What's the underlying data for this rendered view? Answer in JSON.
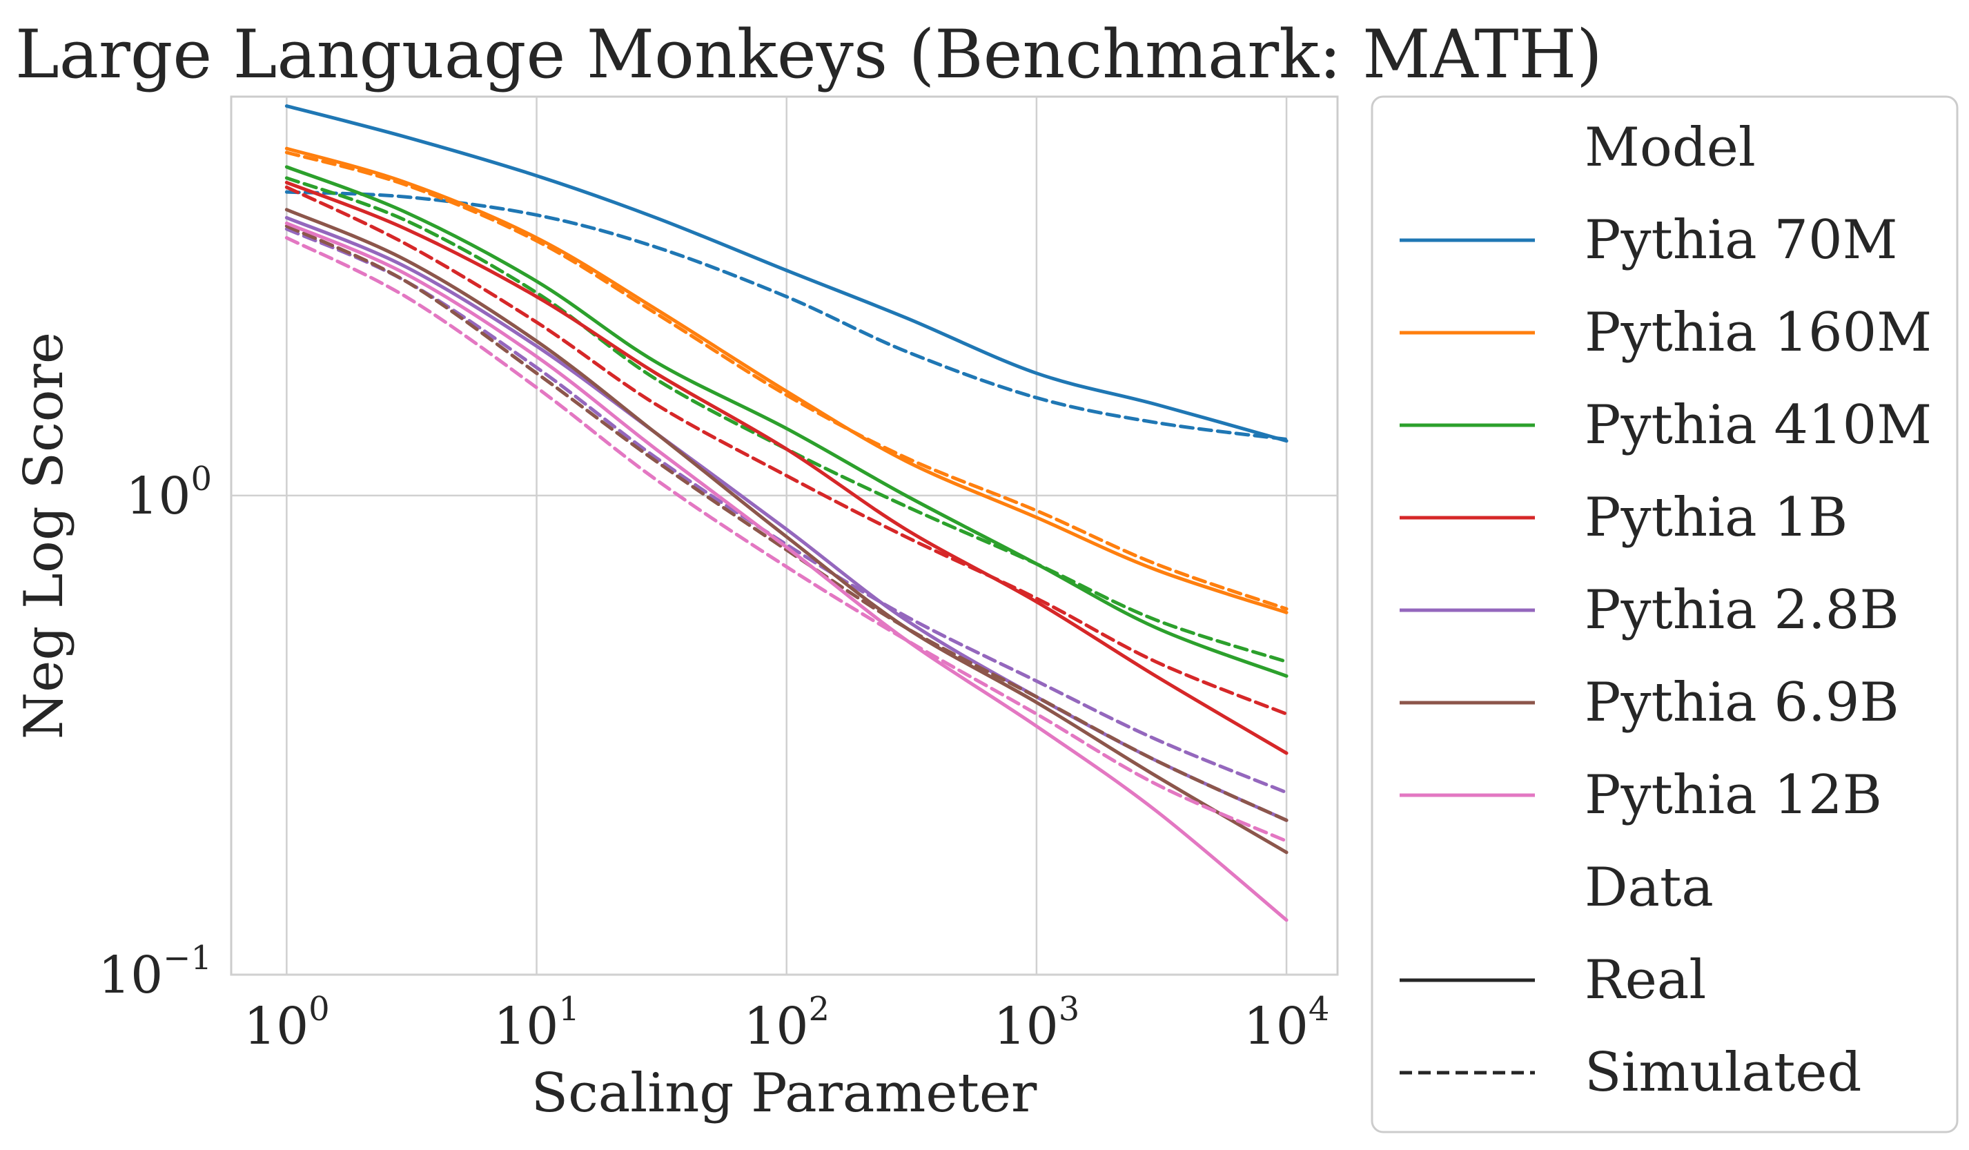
{
  "chart_data": {
    "type": "line",
    "title": "Large Language Monkeys (Benchmark: MATH)",
    "xlabel": "Scaling Parameter",
    "ylabel": "Neg Log Score",
    "x_scale": "log",
    "y_scale": "log",
    "xlim": [
      0.6,
      16000
    ],
    "ylim": [
      0.1,
      6.8
    ],
    "grid": true,
    "x_ticks": [
      {
        "value": 1,
        "base": "10",
        "exp": "0"
      },
      {
        "value": 10,
        "base": "10",
        "exp": "1"
      },
      {
        "value": 100,
        "base": "10",
        "exp": "2"
      },
      {
        "value": 1000,
        "base": "10",
        "exp": "3"
      },
      {
        "value": 10000,
        "base": "10",
        "exp": "4"
      }
    ],
    "y_ticks": [
      {
        "value": 0.1,
        "base": "10",
        "exp": "−1"
      },
      {
        "value": 1,
        "base": "10",
        "exp": "0"
      }
    ],
    "x": [
      1,
      3,
      10,
      30,
      100,
      300,
      1000,
      3000,
      10000
    ],
    "series": [
      {
        "name": "Pythia 70M",
        "model": "Pythia 70M",
        "data": "Real",
        "color": "#1f77b4",
        "values": [
          6.5,
          5.6,
          4.65,
          3.8,
          2.95,
          2.35,
          1.8,
          1.55,
          1.3
        ]
      },
      {
        "name": "Pythia 70M",
        "model": "Pythia 70M",
        "data": "Simulated",
        "color": "#1f77b4",
        "values": [
          4.3,
          4.2,
          3.85,
          3.3,
          2.6,
          2.0,
          1.6,
          1.42,
          1.31
        ]
      },
      {
        "name": "Pythia 160M",
        "model": "Pythia 160M",
        "data": "Real",
        "color": "#ff7f0e",
        "values": [
          5.3,
          4.5,
          3.45,
          2.45,
          1.65,
          1.18,
          0.9,
          0.7,
          0.57
        ]
      },
      {
        "name": "Pythia 160M",
        "model": "Pythia 160M",
        "data": "Simulated",
        "color": "#ff7f0e",
        "values": [
          5.2,
          4.45,
          3.4,
          2.4,
          1.62,
          1.2,
          0.93,
          0.72,
          0.58
        ]
      },
      {
        "name": "Pythia 410M",
        "model": "Pythia 410M",
        "data": "Real",
        "color": "#2ca02c",
        "values": [
          4.85,
          3.9,
          2.8,
          1.9,
          1.38,
          1.0,
          0.72,
          0.53,
          0.42
        ]
      },
      {
        "name": "Pythia 410M",
        "model": "Pythia 410M",
        "data": "Simulated",
        "color": "#2ca02c",
        "values": [
          4.6,
          3.75,
          2.65,
          1.75,
          1.25,
          0.95,
          0.72,
          0.55,
          0.45
        ]
      },
      {
        "name": "Pythia 1B",
        "model": "Pythia 1B",
        "data": "Real",
        "color": "#d62728",
        "values": [
          4.5,
          3.6,
          2.6,
          1.8,
          1.25,
          0.85,
          0.6,
          0.42,
          0.29
        ]
      },
      {
        "name": "Pythia 1B",
        "model": "Pythia 1B",
        "data": "Simulated",
        "color": "#d62728",
        "values": [
          4.4,
          3.35,
          2.3,
          1.55,
          1.1,
          0.82,
          0.61,
          0.45,
          0.35
        ]
      },
      {
        "name": "Pythia 2.8B",
        "model": "Pythia 2.8B",
        "data": "Real",
        "color": "#9467bd",
        "values": [
          3.8,
          3.0,
          2.05,
          1.35,
          0.85,
          0.55,
          0.38,
          0.28,
          0.21
        ]
      },
      {
        "name": "Pythia 2.8B",
        "model": "Pythia 2.8B",
        "data": "Simulated",
        "color": "#9467bd",
        "values": [
          3.6,
          2.8,
          1.85,
          1.2,
          0.79,
          0.56,
          0.41,
          0.31,
          0.24
        ]
      },
      {
        "name": "Pythia 6.9B",
        "model": "Pythia 6.9B",
        "data": "Real",
        "color": "#8c564b",
        "values": [
          3.95,
          3.1,
          2.1,
          1.35,
          0.82,
          0.53,
          0.37,
          0.26,
          0.18
        ]
      },
      {
        "name": "Pythia 6.9B",
        "model": "Pythia 6.9B",
        "data": "Simulated",
        "color": "#8c564b",
        "values": [
          3.65,
          2.8,
          1.8,
          1.18,
          0.77,
          0.53,
          0.38,
          0.28,
          0.21
        ]
      },
      {
        "name": "Pythia 12B",
        "model": "Pythia 12B",
        "data": "Real",
        "color": "#e377c2",
        "values": [
          3.7,
          2.9,
          1.95,
          1.25,
          0.78,
          0.5,
          0.33,
          0.22,
          0.13
        ]
      },
      {
        "name": "Pythia 12B",
        "model": "Pythia 12B",
        "data": "Simulated",
        "color": "#e377c2",
        "values": [
          3.45,
          2.6,
          1.68,
          1.08,
          0.71,
          0.5,
          0.35,
          0.25,
          0.19
        ]
      }
    ],
    "legend": {
      "placement": "outside-right",
      "groups": [
        {
          "heading": "Model",
          "entries": [
            {
              "label": "Pythia 70M",
              "color": "#1f77b4",
              "style": "solid"
            },
            {
              "label": "Pythia 160M",
              "color": "#ff7f0e",
              "style": "solid"
            },
            {
              "label": "Pythia 410M",
              "color": "#2ca02c",
              "style": "solid"
            },
            {
              "label": "Pythia 1B",
              "color": "#d62728",
              "style": "solid"
            },
            {
              "label": "Pythia 2.8B",
              "color": "#9467bd",
              "style": "solid"
            },
            {
              "label": "Pythia 6.9B",
              "color": "#8c564b",
              "style": "solid"
            },
            {
              "label": "Pythia 12B",
              "color": "#e377c2",
              "style": "solid"
            }
          ]
        },
        {
          "heading": "Data",
          "entries": [
            {
              "label": "Real",
              "color": "#262626",
              "style": "solid"
            },
            {
              "label": "Simulated",
              "color": "#262626",
              "style": "dashed"
            }
          ]
        }
      ]
    }
  }
}
